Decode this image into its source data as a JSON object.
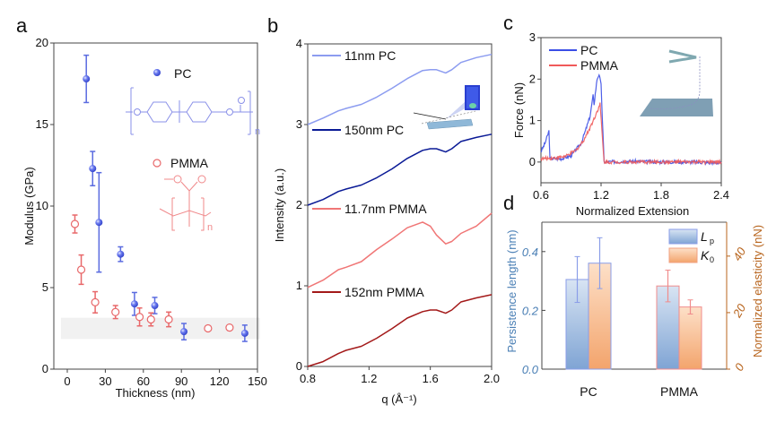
{
  "panels": [
    "a",
    "b",
    "c",
    "d"
  ],
  "chart_data": [
    {
      "type": "scatter",
      "xlabel": "Thickness (nm)",
      "ylabel": "Modulus (GPa)",
      "xlim": [
        -8,
        152
      ],
      "ylim": [
        0,
        20
      ],
      "xticks": [
        "0",
        "30",
        "60",
        "90",
        "120",
        "150"
      ],
      "yticks": [
        "0",
        "5",
        "10",
        "15",
        "20"
      ],
      "grid": false,
      "legend_placement": "top-right",
      "shaded_band_y": [
        1.85,
        3.15
      ],
      "series": [
        {
          "name": "PC",
          "color": "#5a6be0",
          "marker": "filled-circle",
          "points": [
            [
              15,
              17.8,
              1.45
            ],
            [
              20,
              12.3,
              1.05
            ],
            [
              25,
              9.0,
              3.05
            ],
            [
              42,
              7.05,
              0.45
            ],
            [
              53,
              4.0,
              0.7
            ],
            [
              69,
              3.9,
              0.5
            ],
            [
              92,
              2.3,
              0.5
            ],
            [
              140,
              2.2,
              0.5
            ]
          ]
        },
        {
          "name": "PMMA",
          "color": "#e8686a",
          "marker": "open-circle",
          "points": [
            [
              6,
              8.9,
              0.55
            ],
            [
              11,
              6.1,
              0.9
            ],
            [
              22,
              4.1,
              0.65
            ],
            [
              38,
              3.5,
              0.4
            ],
            [
              57,
              3.2,
              0.55
            ],
            [
              66,
              3.05,
              0.4
            ],
            [
              80,
              3.05,
              0.45
            ],
            [
              111,
              2.5,
              0.1
            ],
            [
              128,
              2.55,
              0.1
            ]
          ]
        }
      ],
      "structure_labels": {
        "pc_n": "n",
        "pmma_n": "n"
      }
    },
    {
      "type": "line",
      "xlabel": "q (Å⁻¹)",
      "ylabel": "Intensity (a.u.)",
      "xlim": [
        0.8,
        2.0
      ],
      "ylim": [
        0,
        4
      ],
      "xticks": [
        "0.8",
        "1.2",
        "1.6",
        "2.0"
      ],
      "yticks": [
        "0",
        "1",
        "2",
        "3",
        "4"
      ],
      "grid": false,
      "legend_placement": "inline-left",
      "x": [
        0.8,
        0.9,
        1.0,
        1.05,
        1.15,
        1.25,
        1.35,
        1.45,
        1.55,
        1.6,
        1.64,
        1.7,
        1.74,
        1.8,
        1.9,
        2.0
      ],
      "series": [
        {
          "name": "11nm PC",
          "color": "#8c9cf0",
          "values": [
            3.0,
            3.08,
            3.17,
            3.2,
            3.25,
            3.34,
            3.45,
            3.57,
            3.67,
            3.68,
            3.68,
            3.64,
            3.68,
            3.77,
            3.83,
            3.87
          ]
        },
        {
          "name": "150nm PC",
          "color": "#0a1a96",
          "values": [
            2.0,
            2.07,
            2.17,
            2.2,
            2.25,
            2.34,
            2.45,
            2.58,
            2.68,
            2.7,
            2.7,
            2.66,
            2.7,
            2.79,
            2.84,
            2.88
          ]
        },
        {
          "name": "11.7nm PMMA",
          "color": "#f07676",
          "values": [
            0.98,
            1.07,
            1.2,
            1.23,
            1.3,
            1.45,
            1.58,
            1.72,
            1.79,
            1.74,
            1.63,
            1.52,
            1.55,
            1.65,
            1.74,
            1.9
          ]
        },
        {
          "name": "152nm PMMA",
          "color": "#a31919",
          "values": [
            0.0,
            0.06,
            0.16,
            0.2,
            0.25,
            0.35,
            0.47,
            0.6,
            0.68,
            0.7,
            0.7,
            0.66,
            0.7,
            0.8,
            0.85,
            0.89
          ]
        }
      ]
    },
    {
      "type": "line",
      "xlabel": "Normalized Extension",
      "ylabel": "Force (nN)",
      "xlim": [
        0.6,
        2.4
      ],
      "ylim": [
        -0.5,
        3
      ],
      "xticks": [
        "0.6",
        "1.2",
        "1.8",
        "2.4"
      ],
      "yticks": [
        "0",
        "1",
        "2",
        "3"
      ],
      "grid": false,
      "legend_placement": "top-left",
      "series": [
        {
          "name": "PC",
          "color": "#3b4ee6",
          "points": [
            [
              0.6,
              0.25
            ],
            [
              0.64,
              0.45
            ],
            [
              0.68,
              0.75
            ],
            [
              0.69,
              0.08
            ],
            [
              0.8,
              0.08
            ],
            [
              0.9,
              0.15
            ],
            [
              1.0,
              0.45
            ],
            [
              1.05,
              0.8
            ],
            [
              1.09,
              1.1
            ],
            [
              1.12,
              1.6
            ],
            [
              1.13,
              1.4
            ],
            [
              1.16,
              2.0
            ],
            [
              1.18,
              2.12
            ],
            [
              1.2,
              1.85
            ],
            [
              1.23,
              0.0
            ],
            [
              1.5,
              0.02
            ],
            [
              1.8,
              0.0
            ],
            [
              2.1,
              0.0
            ],
            [
              2.4,
              -0.02
            ]
          ]
        },
        {
          "name": "PMMA",
          "color": "#f05a5a",
          "points": [
            [
              0.6,
              0.08
            ],
            [
              0.75,
              0.1
            ],
            [
              0.85,
              0.14
            ],
            [
              0.95,
              0.28
            ],
            [
              1.02,
              0.5
            ],
            [
              1.08,
              0.78
            ],
            [
              1.14,
              1.1
            ],
            [
              1.19,
              1.4
            ],
            [
              1.23,
              0.0
            ],
            [
              1.5,
              0.0
            ],
            [
              1.8,
              0.0
            ],
            [
              2.1,
              0.0
            ],
            [
              2.4,
              0.0
            ]
          ]
        }
      ]
    },
    {
      "type": "bar",
      "categories": [
        "PC",
        "PMMA"
      ],
      "ylabel": "Persistence length (nm)",
      "ylabel_right": "Normalized elasticity (nN)",
      "ylim": [
        0,
        0.5
      ],
      "ylim_right": [
        0,
        52
      ],
      "yticks": [
        "0.0",
        "0.2",
        "0.4"
      ],
      "yticks_right": [
        "0",
        "20",
        "40"
      ],
      "left_axis_color": "#4a7fb5",
      "right_axis_color": "#b8651e",
      "legend_placement": "top-right",
      "series": [
        {
          "name": "Lp",
          "name_main": "L",
          "name_sub": "p",
          "axis": "left",
          "color": "#8fb3df",
          "values": [
            0.305,
            0.283
          ],
          "errors": [
            0.078,
            0.054
          ]
        },
        {
          "name": "K0",
          "name_main": "K",
          "name_sub": "0",
          "axis": "right",
          "color": "#f5b27e",
          "values": [
            37.5,
            22
          ],
          "errors": [
            9,
            2.5
          ]
        }
      ]
    }
  ]
}
